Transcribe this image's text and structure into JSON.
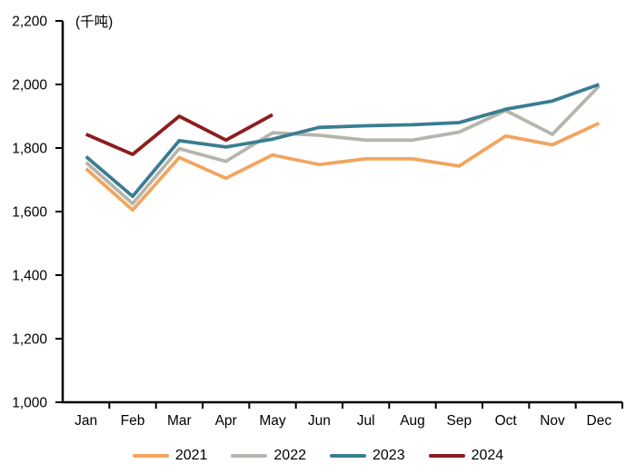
{
  "background": "#FFFFFF",
  "axis_color": "#000000",
  "chart_data": {
    "type": "line",
    "title": "",
    "unit_label": "(千吨)",
    "xlabel": "",
    "ylabel": "千吨",
    "grid": false,
    "legend_position": "bottom",
    "ylim": [
      1000,
      2200
    ],
    "ytick_step": 200,
    "categories": [
      "Jan",
      "Feb",
      "Mar",
      "Apr",
      "May",
      "Jun",
      "Jul",
      "Aug",
      "Sep",
      "Oct",
      "Nov",
      "Dec"
    ],
    "yticks": [
      {
        "value": 1000,
        "label": "1,000"
      },
      {
        "value": 1200,
        "label": "1,200"
      },
      {
        "value": 1400,
        "label": "1,400"
      },
      {
        "value": 1600,
        "label": "1,600"
      },
      {
        "value": 1800,
        "label": "1,800"
      },
      {
        "value": 2000,
        "label": "2,000"
      },
      {
        "value": 2200,
        "label": "2,200"
      }
    ],
    "series": [
      {
        "name": "2021",
        "color": "#F2A55F",
        "values": [
          1735,
          1605,
          1770,
          1705,
          1778,
          1748,
          1766,
          1766,
          1743,
          1838,
          1810,
          1878
        ]
      },
      {
        "name": "2022",
        "color": "#B5B5AB",
        "values": [
          1755,
          1625,
          1798,
          1758,
          1848,
          1840,
          1825,
          1825,
          1850,
          1918,
          1843,
          1995
        ]
      },
      {
        "name": "2023",
        "color": "#3A7D92",
        "values": [
          1773,
          1648,
          1823,
          1803,
          1828,
          1865,
          1870,
          1873,
          1880,
          1922,
          1948,
          2000
        ]
      },
      {
        "name": "2024",
        "color": "#8C1E1E",
        "values": [
          1843,
          1780,
          1900,
          1825,
          1905
        ]
      }
    ]
  }
}
